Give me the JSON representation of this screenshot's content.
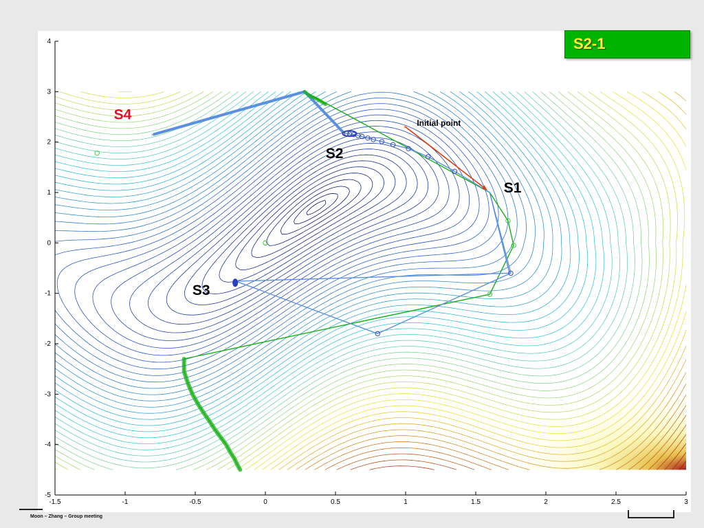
{
  "slide_badge": "S2-1",
  "footer_text": "Moon – Zhang – Group meeting",
  "chart_data": {
    "type": "line",
    "title": "",
    "xlabel": "",
    "ylabel": "",
    "xlim": [
      -1.5,
      3
    ],
    "ylim": [
      -5,
      4
    ],
    "xticks": [
      -1.5,
      -1,
      -0.5,
      0,
      0.5,
      1,
      1.5,
      2,
      2.5,
      3
    ],
    "xtick_labels": [
      "-1.5",
      "-1",
      "-0.5",
      "0",
      "0.5",
      "1",
      "1.5",
      "2",
      "2.5",
      "3"
    ],
    "yticks": [
      -5,
      -4,
      -3,
      -2,
      -1,
      0,
      1,
      2,
      3,
      4
    ],
    "ytick_labels": [
      "-5",
      "-4",
      "-3",
      "-2",
      "-1",
      "0",
      "1",
      "2",
      "3",
      "4"
    ],
    "grid": false,
    "background": "contour plot of the objective function, range x -1.5 to 3, y -4.5 to 3",
    "annotations": [
      {
        "text": "Initial point",
        "x": 1.08,
        "y": 2.32,
        "color": "#000000"
      },
      {
        "text": "S1",
        "x": 1.7,
        "y": 1.0,
        "color": "#000000"
      },
      {
        "text": "S2",
        "x": 0.43,
        "y": 1.68,
        "color": "#000000"
      },
      {
        "text": "S3",
        "x": -0.52,
        "y": -1.03,
        "color": "#000000"
      },
      {
        "text": "S4",
        "x": -1.08,
        "y": 2.45,
        "color": "#e0102a"
      }
    ],
    "colors": {
      "blue_path": "#5b8fe0",
      "green_path": "#16b016",
      "initial_arrow": "#e03a10",
      "contour_dark": "#0a1a6e"
    },
    "series": [
      {
        "style": "green",
        "x": [
          1.6,
          1.73,
          1.77,
          1.6,
          -0.58,
          -0.58,
          -0.55,
          -0.52,
          -0.48,
          -0.44,
          -0.4,
          -0.36,
          -0.32,
          -0.28,
          -0.25,
          -0.22,
          -0.2,
          -0.18
        ],
        "y": [
          1.0,
          0.44,
          -0.05,
          -1.02,
          -2.3,
          -2.55,
          -2.8,
          -3.0,
          -3.2,
          -3.37,
          -3.53,
          -3.7,
          -3.85,
          -4.0,
          -4.15,
          -4.28,
          -4.4,
          -4.5
        ]
      },
      {
        "style": "green",
        "x": [
          1.6,
          0.28,
          0.3,
          0.33,
          0.37,
          0.4,
          0.43
        ],
        "y": [
          1.0,
          3.0,
          2.95,
          2.9,
          2.85,
          2.8,
          2.75
        ]
      },
      {
        "style": "blue",
        "x": [
          1.6,
          1.74,
          -0.22
        ],
        "y": [
          1.0,
          -0.6,
          -0.76
        ]
      },
      {
        "style": "blue",
        "x": [
          1.6,
          1.75,
          0.8,
          -0.22,
          -0.22,
          -0.21,
          -0.2,
          -0.21
        ],
        "y": [
          1.0,
          -0.6,
          -1.8,
          -0.75,
          -0.78,
          -0.8,
          -0.83,
          -0.85
        ]
      },
      {
        "style": "blue",
        "x": [
          1.6,
          1.35,
          1.16,
          1.02,
          0.91,
          0.83,
          0.77,
          0.73,
          0.69,
          0.66,
          0.63,
          0.6,
          0.58,
          0.56
        ],
        "y": [
          1.0,
          1.42,
          1.71,
          1.87,
          1.95,
          2.01,
          2.05,
          2.08,
          2.11,
          2.13,
          2.15,
          2.16,
          2.17,
          2.18
        ]
      },
      {
        "style": "blue_thick",
        "x": [
          0.56,
          0.28,
          -0.8
        ],
        "y": [
          2.18,
          3.0,
          2.15
        ]
      },
      {
        "style": "arrow",
        "x": [
          1.0,
          1.58
        ],
        "y": [
          2.3,
          1.05
        ]
      }
    ],
    "green_markers": [
      {
        "x": -1.2,
        "y": 1.78
      },
      {
        "x": 0.0,
        "y": 0.0
      },
      {
        "x": 1.73,
        "y": 0.44
      },
      {
        "x": 1.77,
        "y": -0.05
      },
      {
        "x": 1.6,
        "y": -1.02
      }
    ],
    "blue_markers": [
      {
        "x": 1.35,
        "y": 1.42
      },
      {
        "x": 1.16,
        "y": 1.71
      },
      {
        "x": 1.02,
        "y": 1.87
      },
      {
        "x": 0.91,
        "y": 1.95
      },
      {
        "x": 0.83,
        "y": 2.01
      },
      {
        "x": 0.77,
        "y": 2.05
      },
      {
        "x": 0.73,
        "y": 2.08
      },
      {
        "x": 0.69,
        "y": 2.11
      },
      {
        "x": 0.66,
        "y": 2.13
      },
      {
        "x": 0.63,
        "y": 2.15
      },
      {
        "x": 0.6,
        "y": 2.16
      },
      {
        "x": 0.58,
        "y": 2.17
      },
      {
        "x": 1.75,
        "y": -0.6
      },
      {
        "x": 0.8,
        "y": -1.8
      }
    ]
  }
}
